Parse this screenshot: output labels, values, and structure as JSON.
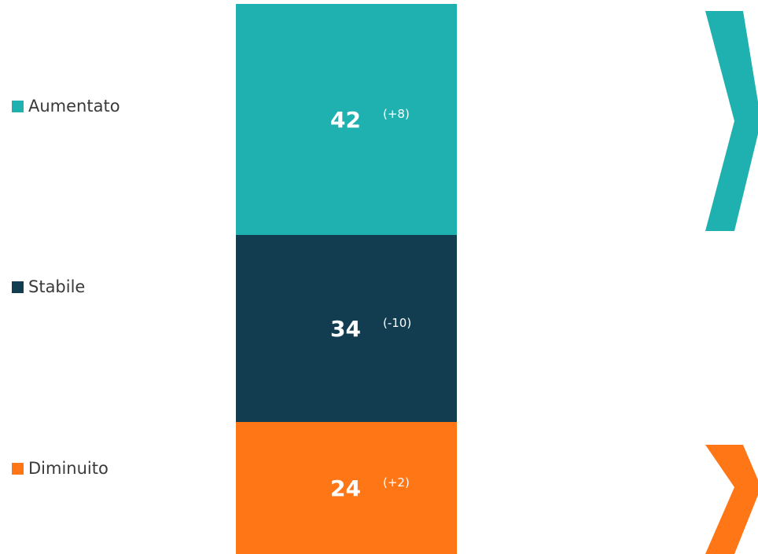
{
  "chart_data": {
    "type": "bar",
    "stacked": true,
    "orientation": "vertical",
    "title": "",
    "xlabel": "",
    "ylabel": "",
    "ylim": [
      0,
      100
    ],
    "grid": false,
    "legend_position": "left",
    "series": [
      {
        "name": "Aumentato",
        "value": 42,
        "value_label": "42",
        "delta_label": "(+8)",
        "color": "#1fb1b0"
      },
      {
        "name": "Stabile",
        "value": 34,
        "value_label": "34",
        "delta_label": "(-10)",
        "color": "#123d51"
      },
      {
        "name": "Diminuito",
        "value": 24,
        "value_label": "24",
        "delta_label": "(+2)",
        "color": "#fe7615"
      }
    ]
  },
  "decorations": {
    "up_arrow_color": "#1fb1b0",
    "down_arrow_color": "#fe7615",
    "up_arrow_icon": "chevron-right-icon",
    "down_arrow_icon": "chevron-right-icon"
  }
}
